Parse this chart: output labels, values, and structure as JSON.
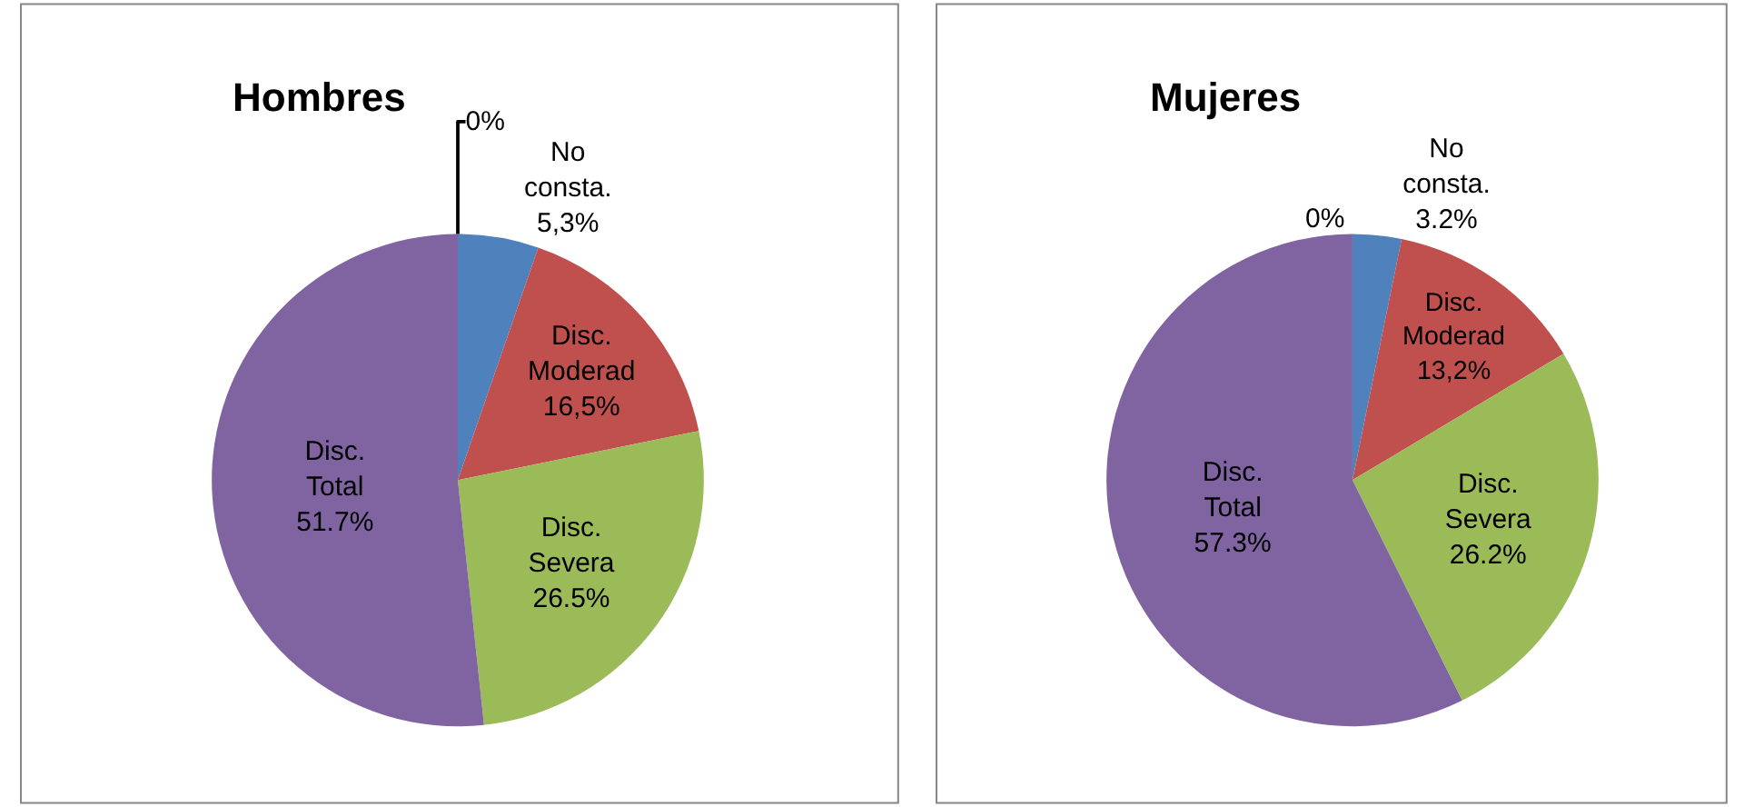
{
  "chart_data": [
    {
      "type": "pie",
      "title": "Hombres",
      "categories": [
        "No consta.",
        "Disc. Moderad",
        "Disc. Severa",
        "Disc. Total",
        null
      ],
      "values": [
        5.3,
        16.5,
        26.5,
        51.7,
        0
      ],
      "value_labels": [
        "5,3%",
        "16,5%",
        "26.5%",
        "51.7%",
        "0%"
      ],
      "colors": [
        "#4f81bd",
        "#c0504d",
        "#9bbb59",
        "#8064a2",
        "#4bacc6"
      ],
      "legend": false
    },
    {
      "type": "pie",
      "title": "Mujeres",
      "categories": [
        "No consta.",
        "Disc. Moderad",
        "Disc. Severa",
        "Disc. Total",
        null
      ],
      "values": [
        3.2,
        13.2,
        26.2,
        57.3,
        0
      ],
      "value_labels": [
        "3.2%",
        "13,2%",
        "26.2%",
        "57.3%",
        "0%"
      ],
      "colors": [
        "#4f81bd",
        "#c0504d",
        "#9bbb59",
        "#8064a2",
        "#4bacc6"
      ],
      "legend": false
    }
  ]
}
